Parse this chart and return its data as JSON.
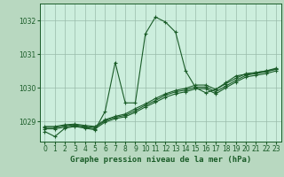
{
  "background_color": "#b8d8c0",
  "plot_bg_color": "#cceedd",
  "grid_color": "#99bbaa",
  "line_color": "#1a5c28",
  "title": "Graphe pression niveau de la mer (hPa)",
  "xlabel_ticks": [
    0,
    1,
    2,
    3,
    4,
    5,
    6,
    7,
    8,
    9,
    10,
    11,
    12,
    13,
    14,
    15,
    16,
    17,
    18,
    19,
    20,
    21,
    22,
    23
  ],
  "ylim": [
    1028.4,
    1032.5
  ],
  "xlim": [
    -0.5,
    23.5
  ],
  "yticks": [
    1029,
    1030,
    1031,
    1032
  ],
  "series": [
    {
      "y": [
        1028.7,
        1028.55,
        1028.8,
        1028.85,
        1028.8,
        1028.75,
        1029.3,
        1030.75,
        1029.55,
        1029.55,
        1031.6,
        1032.1,
        1031.95,
        1031.65,
        1030.5,
        1030.0,
        1029.85,
        1029.95,
        1030.15,
        1030.35,
        1030.4,
        1030.45,
        1030.5,
        1030.55
      ],
      "linestyle": "-",
      "dotted": false
    },
    {
      "y": [
        1028.85,
        1028.85,
        1028.9,
        1028.92,
        1028.88,
        1028.85,
        1029.05,
        1029.15,
        1029.22,
        1029.38,
        1029.52,
        1029.68,
        1029.82,
        1029.92,
        1029.98,
        1030.08,
        1030.08,
        1029.95,
        1030.12,
        1030.28,
        1030.42,
        1030.45,
        1030.5,
        1030.58
      ],
      "linestyle": "-",
      "dotted": false
    },
    {
      "y": [
        1028.82,
        1028.82,
        1028.87,
        1028.9,
        1028.85,
        1028.82,
        1029.02,
        1029.12,
        1029.18,
        1029.32,
        1029.48,
        1029.62,
        1029.78,
        1029.88,
        1029.93,
        1030.02,
        1030.02,
        1029.88,
        1030.05,
        1030.22,
        1030.37,
        1030.42,
        1030.47,
        1030.55
      ],
      "linestyle": "-",
      "dotted": false
    },
    {
      "y": [
        1028.78,
        1028.78,
        1028.83,
        1028.87,
        1028.82,
        1028.78,
        1028.98,
        1029.08,
        1029.14,
        1029.27,
        1029.43,
        1029.57,
        1029.72,
        1029.82,
        1029.88,
        1029.97,
        1029.97,
        1029.82,
        1030.0,
        1030.17,
        1030.32,
        1030.37,
        1030.42,
        1030.5
      ],
      "linestyle": "-",
      "dotted": false
    }
  ],
  "marker": "+",
  "markersize": 3,
  "linewidth": 0.8,
  "tick_fontsize": 5.5,
  "title_fontsize": 6.5
}
